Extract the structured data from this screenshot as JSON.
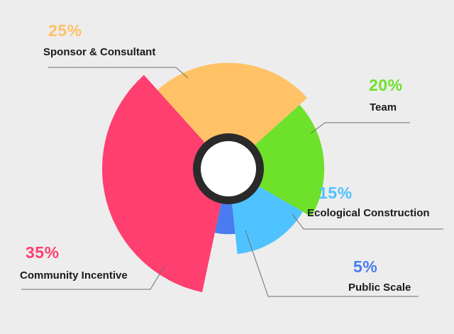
{
  "chart_data": {
    "type": "pie",
    "title": "",
    "slices": [
      {
        "label": "Sponsor & Consultant",
        "value": 25,
        "value_label": "25%",
        "color": "#ffc266"
      },
      {
        "label": "Team",
        "value": 20,
        "value_label": "20%",
        "color": "#6ee12b"
      },
      {
        "label": "Ecological Construction",
        "value": 15,
        "value_label": "15%",
        "color": "#4fc3ff"
      },
      {
        "label": "Public Scale",
        "value": 5,
        "value_label": "5%",
        "color": "#4a7cf0"
      },
      {
        "label": "Community Incentive",
        "value": 35,
        "value_label": "35%",
        "color": "#ff3f6f"
      }
    ]
  }
}
